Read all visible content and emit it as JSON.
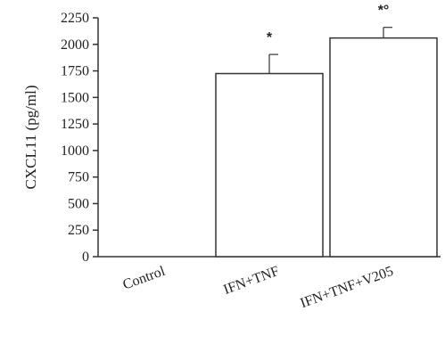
{
  "chart_data": {
    "type": "bar",
    "categories": [
      "Control",
      "IFN+TNF",
      "IFN+TNF+V205"
    ],
    "values": [
      0,
      1725,
      2060
    ],
    "errors": [
      0,
      180,
      100
    ],
    "annotations": [
      "",
      "*",
      "*°"
    ],
    "xlabel": "",
    "ylabel": "CXCL11 (pg/ml)",
    "ylim": [
      0,
      2250
    ],
    "yticks": [
      0,
      250,
      500,
      750,
      1000,
      1250,
      1500,
      1750,
      2000,
      2250
    ],
    "ytick_labels": [
      "0",
      "250",
      "500",
      "750",
      "1000",
      "1250",
      "1500",
      "1750",
      "2000",
      "2250"
    ],
    "grid": false,
    "bar_fill": "#ffffff",
    "bar_stroke": "#333333"
  }
}
